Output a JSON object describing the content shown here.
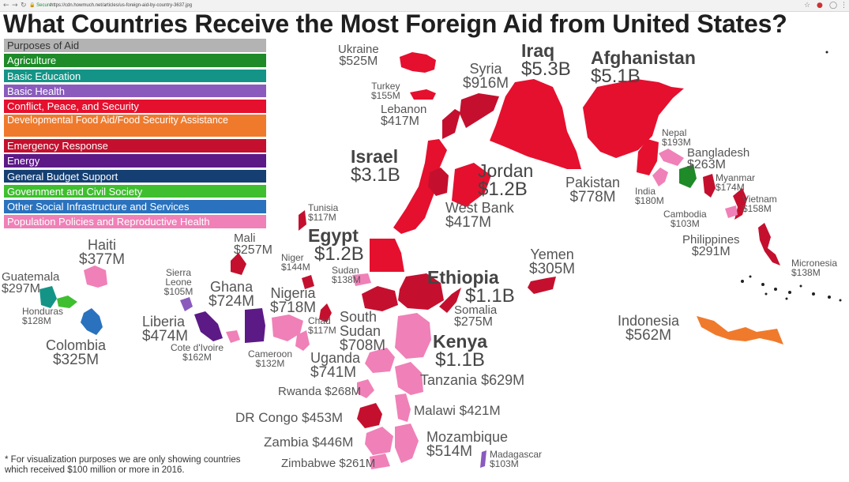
{
  "browser": {
    "secure_label": "Secure",
    "url": "https://cdn.howmuch.net/articles/us-foreign-aid-by-country-3637.jpg"
  },
  "title": "What Countries Receive the Most Foreign Aid from United States?",
  "legend": {
    "header": "Purposes of Aid",
    "items": [
      {
        "label": "Agriculture",
        "color": "#1e8a28"
      },
      {
        "label": "Basic Education",
        "color": "#149486"
      },
      {
        "label": "Basic Health",
        "color": "#8a5bbd"
      },
      {
        "label": "Conflict, Peace, and Security",
        "color": "#e5102e"
      },
      {
        "label": "Developmental Food Aid/Food Security Assistance",
        "color": "#f07a2c"
      },
      {
        "label": "Emergency Response",
        "color": "#c4102e"
      },
      {
        "label": "Energy",
        "color": "#5c1a86"
      },
      {
        "label": "General Budget Support",
        "color": "#153f72"
      },
      {
        "label": "Government and Civil Society",
        "color": "#3fbf2f"
      },
      {
        "label": "Other Social Infrastructure and Services",
        "color": "#2a72be"
      },
      {
        "label": "Population Policies and Reproductive Health",
        "color": "#f080b8"
      }
    ]
  },
  "countries": {
    "ukraine": {
      "name": "Ukraine",
      "value": "$525M"
    },
    "syria": {
      "name": "Syria",
      "value": "$916M"
    },
    "iraq": {
      "name": "Iraq",
      "value": "$5.3B"
    },
    "afghanistan": {
      "name": "Afghanistan",
      "value": "$5.1B"
    },
    "turkey": {
      "name": "Turkey",
      "value": "$155M"
    },
    "lebanon": {
      "name": "Lebanon",
      "value": "$417M"
    },
    "nepal": {
      "name": "Nepal",
      "value": "$193M"
    },
    "bangladesh": {
      "name": "Bangladesh",
      "value": "$263M"
    },
    "israel": {
      "name": "Israel",
      "value": "$3.1B"
    },
    "jordan": {
      "name": "Jordan",
      "value": "$1.2B"
    },
    "pakistan": {
      "name": "Pakistan",
      "value": "$778M"
    },
    "india": {
      "name": "India",
      "value": "$180M"
    },
    "myanmar": {
      "name": "Myanmar",
      "value": "$174M"
    },
    "vietnam": {
      "name": "Vietnam",
      "value": "$158M"
    },
    "cambodia": {
      "name": "Cambodia",
      "value": "$103M"
    },
    "westbank": {
      "name": "West Bank",
      "value": "$417M"
    },
    "tunisia": {
      "name": "Tunisia",
      "value": "$117M"
    },
    "egypt": {
      "name": "Egypt",
      "value": "$1.2B"
    },
    "philippines": {
      "name": "Philippines",
      "value": "$291M"
    },
    "micronesia": {
      "name": "Micronesia",
      "value": "$138M"
    },
    "mali": {
      "name": "Mali",
      "value": "$257M"
    },
    "yemen": {
      "name": "Yemen",
      "value": "$305M"
    },
    "haiti": {
      "name": "Haiti",
      "value": "$377M"
    },
    "niger": {
      "name": "Niger",
      "value": "$144M"
    },
    "sudan": {
      "name": "Sudan",
      "value": "$138M"
    },
    "ethiopia": {
      "name": "Ethiopia",
      "value": "$1.1B"
    },
    "sierraleone": {
      "name": "Sierra Leone",
      "value": "$105M"
    },
    "guatemala": {
      "name": "Guatemala",
      "value": "$297M"
    },
    "ghana": {
      "name": "Ghana",
      "value": "$724M"
    },
    "nigeria": {
      "name": "Nigeria",
      "value": "$718M"
    },
    "somalia": {
      "name": "Somalia",
      "value": "$275M"
    },
    "honduras": {
      "name": "Honduras",
      "value": "$128M"
    },
    "liberia": {
      "name": "Liberia",
      "value": "$474M"
    },
    "chad": {
      "name": "Chad",
      "value": "$117M"
    },
    "southsudan": {
      "name": "South Sudan",
      "value": "$708M"
    },
    "indonesia": {
      "name": "Indonesia",
      "value": "$562M"
    },
    "kenya": {
      "name": "Kenya",
      "value": "$1.1B"
    },
    "colombia": {
      "name": "Colombia",
      "value": "$325M"
    },
    "cotedivoire": {
      "name": "Cote d'Ivoire",
      "value": "$162M"
    },
    "cameroon": {
      "name": "Cameroon",
      "value": "$132M"
    },
    "uganda": {
      "name": "Uganda",
      "value": "$741M"
    },
    "tanzania": {
      "name": "Tanzania",
      "value": "$629M"
    },
    "rwanda": {
      "name": "Rwanda",
      "value": "$268M"
    },
    "drcongo": {
      "name": "DR Congo",
      "value": "$453M"
    },
    "malawi": {
      "name": "Malawi",
      "value": "$421M"
    },
    "zambia": {
      "name": "Zambia",
      "value": "$446M"
    },
    "mozambique": {
      "name": "Mozambique",
      "value": "$514M"
    },
    "zimbabwe": {
      "name": "Zimbabwe",
      "value": "$261M"
    },
    "madagascar": {
      "name": "Madagascar",
      "value": "$103M"
    }
  },
  "footnote": "* For visualization purposes we are only showing countries which received $100 million or more in 2016."
}
